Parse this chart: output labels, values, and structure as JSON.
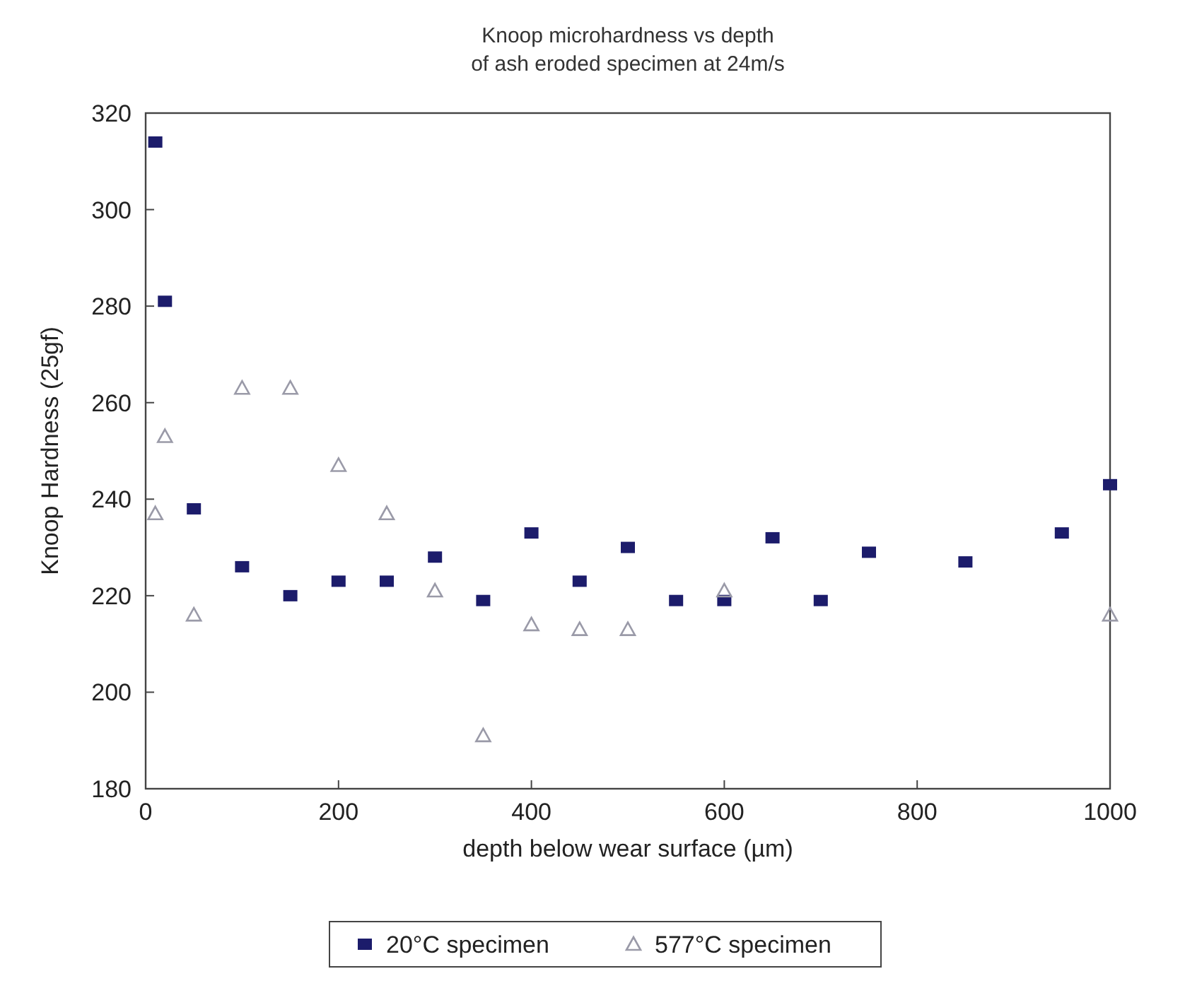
{
  "chart_data": {
    "type": "scatter",
    "title": "Knoop microhardness vs depth\nof ash eroded specimen at 24m/s",
    "xlabel": "depth below wear surface (µm)",
    "ylabel": "Knoop Hardness (25gf)",
    "xlim": [
      0,
      1000
    ],
    "xticks": [
      0,
      200,
      400,
      600,
      800,
      1000
    ],
    "ylim": [
      180,
      320
    ],
    "yticks": [
      180,
      200,
      220,
      240,
      260,
      280,
      300,
      320
    ],
    "grid": false,
    "legend": "bottom",
    "series": [
      {
        "name": "20°C specimen",
        "color": "#1c1c6b",
        "marker": "square",
        "x": [
          10,
          20,
          50,
          100,
          150,
          200,
          250,
          300,
          350,
          400,
          450,
          500,
          550,
          600,
          650,
          700,
          750,
          850,
          950,
          1000
        ],
        "values": [
          314,
          281,
          238,
          226,
          220,
          223,
          223,
          228,
          219,
          233,
          223,
          230,
          219,
          219,
          232,
          219,
          229,
          227,
          233,
          243
        ]
      },
      {
        "name": "577°C specimen",
        "color": "#9a9aa8",
        "marker": "triangle",
        "x": [
          10,
          20,
          50,
          100,
          150,
          200,
          250,
          300,
          350,
          400,
          450,
          500,
          600,
          1000
        ],
        "values": [
          237,
          253,
          216,
          263,
          263,
          247,
          237,
          221,
          191,
          214,
          213,
          213,
          221,
          216
        ]
      }
    ]
  }
}
